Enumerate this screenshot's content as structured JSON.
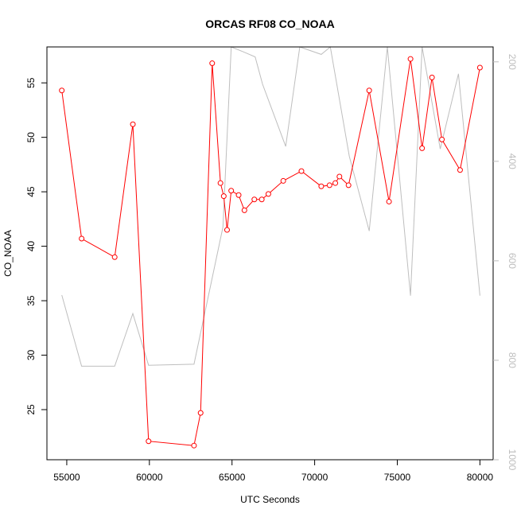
{
  "chart_data": {
    "type": "line",
    "title": "ORCAS RF08 CO_NOAA",
    "xlabel": "UTC Seconds",
    "ylabel": "CO_NOAA",
    "xlim": [
      53800,
      80800
    ],
    "ylim": [
      20.4,
      58.3
    ],
    "x_ticks": [
      55000,
      60000,
      65000,
      70000,
      75000,
      80000
    ],
    "x_tick_labels": [
      "55000",
      "60000",
      "65000",
      "70000",
      "75000",
      "80000"
    ],
    "y_ticks": [
      25,
      30,
      35,
      40,
      45,
      50,
      55
    ],
    "y_tick_labels": [
      "25",
      "30",
      "35",
      "40",
      "45",
      "50",
      "55"
    ],
    "y2_reversed": true,
    "y2lim": [
      1000,
      170
    ],
    "y2_ticks": [
      200,
      400,
      600,
      800,
      1000
    ],
    "y2_tick_labels": [
      "200",
      "400",
      "600",
      "800",
      "1000"
    ],
    "grid": false,
    "legend": "none",
    "series": [
      {
        "axis": "left",
        "color": "#ff0000",
        "marker": "open-circle",
        "x": [
          54700,
          55900,
          57900,
          59000,
          59950,
          62700,
          63100,
          63800,
          64300,
          64500,
          64700,
          64950,
          65400,
          65750,
          66350,
          66800,
          67200,
          68100,
          69200,
          70400,
          70900,
          71250,
          71500,
          72050,
          73300,
          74500,
          75800,
          76500,
          77100,
          77700,
          78800,
          80000
        ],
        "y": [
          54.3,
          40.7,
          39.0,
          51.2,
          22.1,
          21.7,
          24.7,
          56.8,
          45.8,
          44.6,
          41.5,
          45.1,
          44.7,
          43.3,
          44.3,
          44.3,
          44.8,
          46.0,
          46.9,
          45.5,
          45.6,
          45.8,
          46.4,
          45.6,
          54.3,
          44.1,
          57.2,
          49.0,
          55.5,
          49.8,
          47.0,
          56.4
        ]
      },
      {
        "axis": "right",
        "color": "#bebebe",
        "marker": "none",
        "x": [
          54700,
          55900,
          57900,
          59000,
          59950,
          62700,
          64450,
          64950,
          65700,
          66400,
          66850,
          68250,
          69100,
          70400,
          70950,
          72100,
          73300,
          74400,
          75800,
          76500,
          77600,
          78700,
          80000
        ],
        "y": [
          669,
          812,
          812,
          706,
          810,
          808,
          532,
          150,
          180,
          190,
          245,
          370,
          150,
          185,
          150,
          390,
          540,
          150,
          670,
          150,
          375,
          224,
          670
        ]
      }
    ]
  }
}
